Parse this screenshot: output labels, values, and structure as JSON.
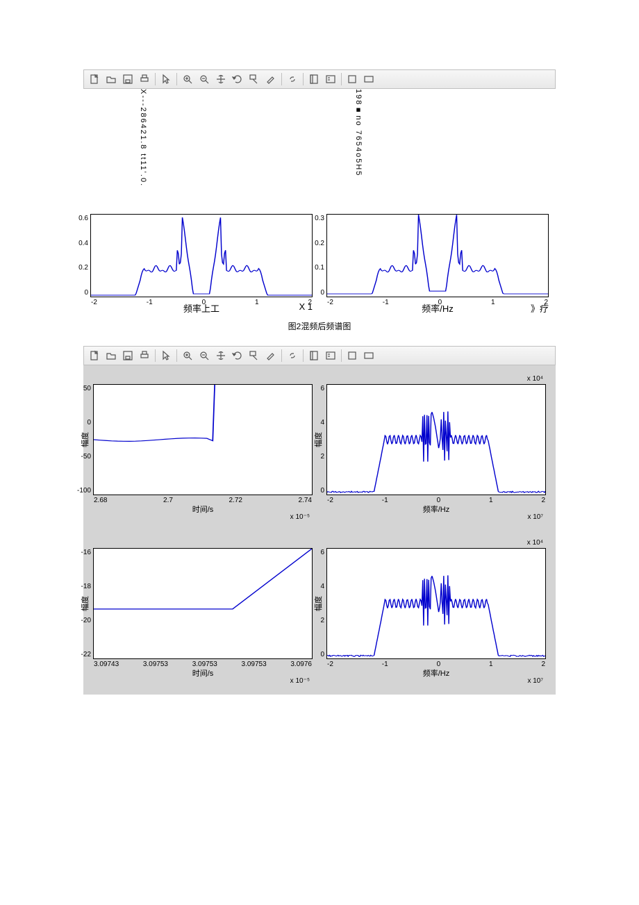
{
  "colors": {
    "page_bg": "#ffffff",
    "figure_bg": "#d4d4d4",
    "plot_bg": "#ffffff",
    "axis": "#000000",
    "line": "#0000cd",
    "toolbar_top": "#f7f7f7",
    "toolbar_bottom": "#e8e8e8",
    "toolbar_border": "#c0c0c0"
  },
  "toolbar": {
    "icons": [
      "new",
      "open",
      "save",
      "print",
      "sep",
      "pointer",
      "sep",
      "zoom-in",
      "zoom-out",
      "pan",
      "rotate",
      "datatip",
      "brush",
      "sep",
      "link",
      "sep",
      "colorbar",
      "legend",
      "sep",
      "vbox",
      "hbox"
    ]
  },
  "figure1": {
    "top_vertical_left": "X---286421.8 tt11'.0.",
    "top_vertical_right": "198■no 7654o5H5",
    "plots": {
      "left": {
        "type": "line",
        "xlim": [
          -2,
          2
        ],
        "ylim": [
          0,
          0.6
        ],
        "xticks": [
          "-2",
          "-1",
          "0",
          "1",
          "2"
        ],
        "yticks": [
          "0.6",
          "0.4",
          "0.2",
          "0"
        ],
        "line_color": "#0000cd",
        "xlabel": "频率上工",
        "xlabel_right": "X 1"
      },
      "right": {
        "type": "line",
        "xlim": [
          -2,
          2
        ],
        "ylim": [
          0,
          0.3
        ],
        "xticks": [
          "-2",
          "-1",
          "0",
          "1",
          "2"
        ],
        "yticks": [
          "0.3",
          "0.2",
          "0.1",
          "0"
        ],
        "line_color": "#0000cd",
        "xlabel": "频率/Hz",
        "xlabel_right": "》疗"
      }
    },
    "caption": "图2混频后频谱图"
  },
  "figure2": {
    "plots": [
      {
        "type": "line",
        "ylabel": "幅度",
        "xlabel": "时间/s",
        "xsub": "x 10⁻⁵",
        "xlim": [
          2.66,
          2.74
        ],
        "ylim": [
          -120,
          80
        ],
        "xticks": [
          "2.68",
          "2.7",
          "2.72",
          "2.74"
        ],
        "yticks": [
          "50",
          "0",
          "-50",
          "-100"
        ],
        "line_color": "#0000cd"
      },
      {
        "type": "line",
        "ytitle_top": "x 10⁴",
        "ylabel": "幅度",
        "xlabel": "频率/Hz",
        "xsub": "x 10⁷",
        "xlim": [
          -2,
          2
        ],
        "ylim": [
          0,
          6
        ],
        "xticks": [
          "-2",
          "-1",
          "0",
          "1",
          "2"
        ],
        "yticks": [
          "6",
          "4",
          "2",
          "0"
        ],
        "line_color": "#0000cd"
      },
      {
        "type": "line",
        "ylabel": "幅度",
        "xlabel": "时间/s",
        "xsub": "x 10⁻⁵",
        "xlim": [
          3.09743,
          3.0976
        ],
        "ylim": [
          -24,
          -14
        ],
        "xticks": [
          "3.09743",
          "3.09753",
          "3.09753",
          "3.09753",
          "3.0976"
        ],
        "yticks": [
          "-16",
          "-18",
          "-20",
          "-22"
        ],
        "line_color": "#0000cd"
      },
      {
        "type": "line",
        "ytitle_top": "x 10⁴",
        "ylabel": "幅度",
        "xlabel": "频率/Hz",
        "xsub": "x 10⁷",
        "xlim": [
          -2,
          2
        ],
        "ylim": [
          0,
          6
        ],
        "xticks": [
          "-2",
          "-1",
          "0",
          "1",
          "2"
        ],
        "yticks": [
          "6",
          "4",
          "2",
          "0"
        ],
        "line_color": "#0000cd"
      }
    ]
  }
}
